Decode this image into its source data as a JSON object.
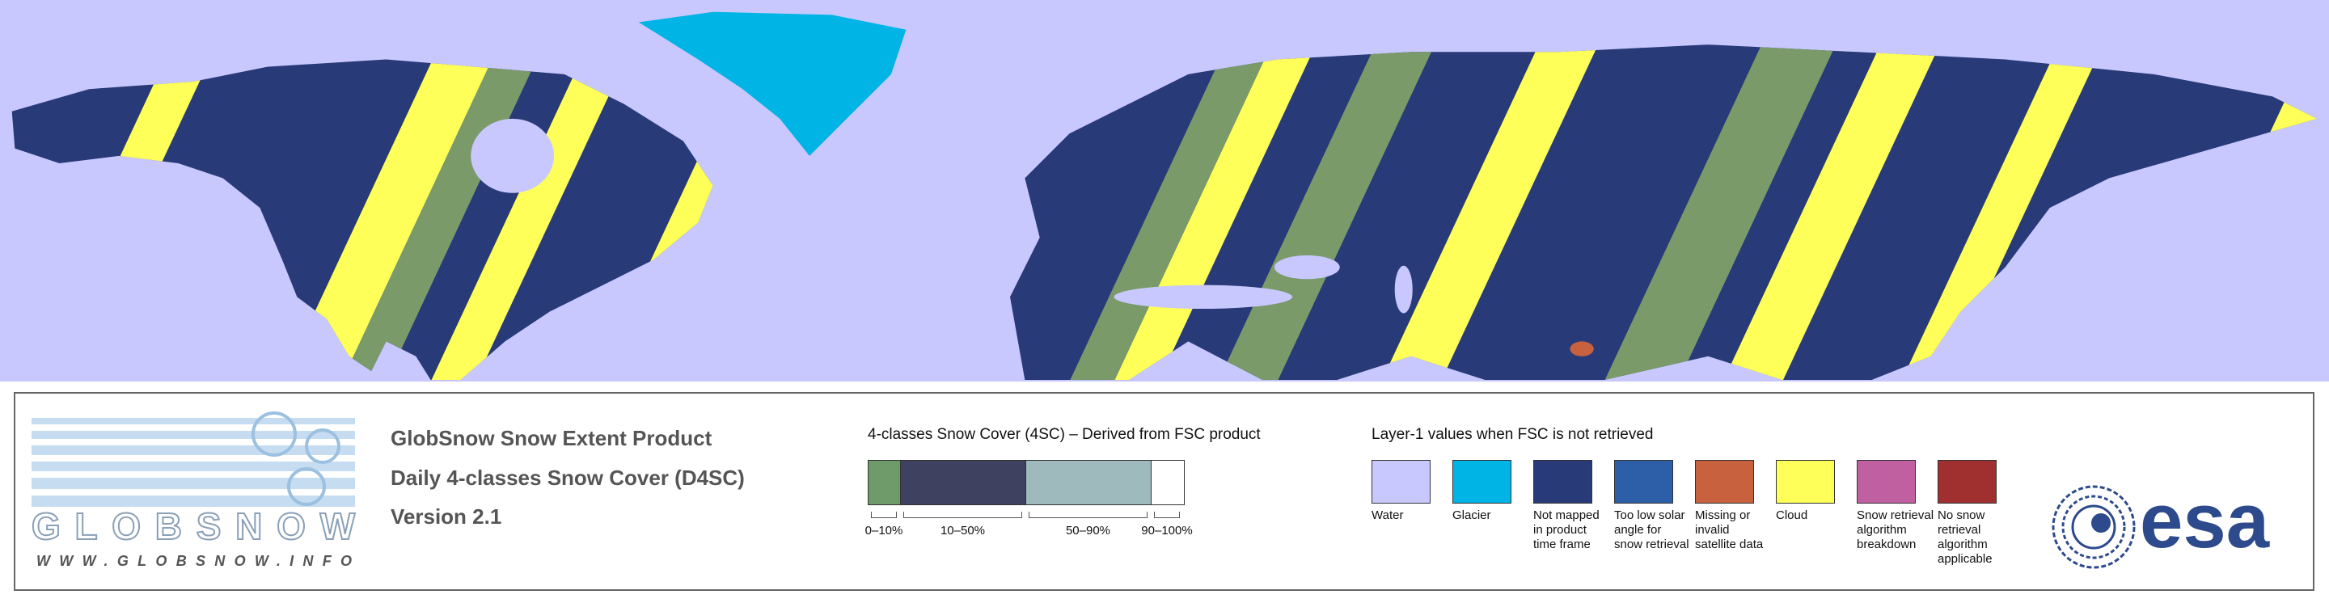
{
  "header": {
    "lines": [
      "GlobSnow Snow Extent Product",
      "Daily 4-classes Snow Cover (D4SC)",
      "Version 2.1"
    ]
  },
  "logo": {
    "name": "GLOBSNOW",
    "url": "WWW.GLOBSNOW.INFO"
  },
  "scale": {
    "title": "4-classes Snow Cover (4SC) – Derived from FSC product",
    "classes": [
      {
        "label": "0–10%",
        "color": "#6f9a6a"
      },
      {
        "label": "10–50%",
        "color": "#3f4160"
      },
      {
        "label": "50–90%",
        "color": "#9fbabd"
      },
      {
        "label": "90–100%",
        "color": "#ffffff"
      }
    ]
  },
  "layer1": {
    "title": "Layer-1 values when FSC is not retrieved",
    "items": [
      {
        "label": "Water",
        "color": "#c8c8ff"
      },
      {
        "label": "Glacier",
        "color": "#00b4e6"
      },
      {
        "label": "Not mapped in product time frame",
        "color": "#283a78"
      },
      {
        "label": "Too low solar angle for snow retrieval",
        "color": "#2c5fa8"
      },
      {
        "label": "Missing or invalid satellite data",
        "color": "#c8623e"
      },
      {
        "label": "Cloud",
        "color": "#ffff5a"
      },
      {
        "label": "Snow retrieval algorithm breakdown",
        "color": "#c060a0"
      },
      {
        "label": "No snow retrieval algorithm applicable",
        "color": "#a03030"
      }
    ]
  },
  "esa": "esa"
}
